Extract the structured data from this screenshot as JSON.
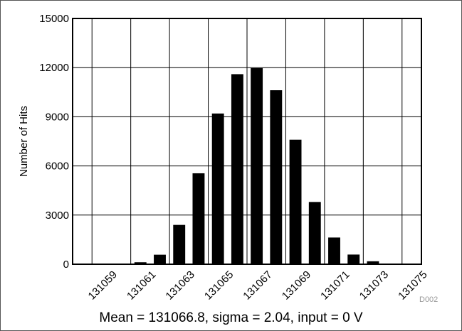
{
  "chart_data": {
    "type": "bar",
    "title": "",
    "xlabel": "",
    "ylabel": "Number of Hits",
    "ylim": [
      0,
      15000
    ],
    "xlim": [
      131058,
      131076
    ],
    "yticks": [
      0,
      3000,
      6000,
      9000,
      12000,
      15000
    ],
    "xticks": [
      131059,
      131061,
      131063,
      131065,
      131067,
      131069,
      131071,
      131073,
      131075
    ],
    "grid": true,
    "bar_color": "#000000",
    "grid_color": "#000000",
    "x": [
      131059,
      131060,
      131061,
      131062,
      131063,
      131064,
      131065,
      131066,
      131067,
      131068,
      131069,
      131070,
      131071,
      131072,
      131073,
      131074,
      131075
    ],
    "values": [
      5,
      20,
      120,
      580,
      2400,
      5550,
      9200,
      11600,
      11970,
      10620,
      7600,
      3800,
      1630,
      590,
      180,
      40,
      10
    ]
  },
  "caption": "Mean = 131066.8, sigma = 2.04, input = 0 V",
  "figure_id": "D002"
}
